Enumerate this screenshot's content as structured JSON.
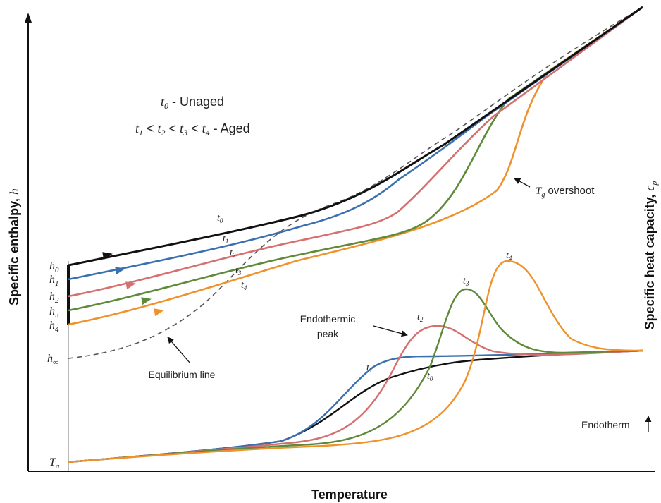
{
  "legend": {
    "line1": {
      "symbol": "t",
      "sub": "0",
      "text": " - Unaged"
    },
    "line2": {
      "parts": [
        {
          "symbol": "t",
          "sub": "1"
        },
        {
          "symbol": "t",
          "sub": "2"
        },
        {
          "symbol": "t",
          "sub": "3"
        },
        {
          "symbol": "t",
          "sub": "4"
        }
      ],
      "separator": " < ",
      "suffix": " - Aged"
    }
  },
  "axes": {
    "x_title": "Temperature",
    "y_left_title": "Specific enthalpy, ",
    "y_left_symbol": "h",
    "y_right_title": "Specific heat capacity, ",
    "y_right_symbol": "c",
    "y_right_sub": "p"
  },
  "left_ticks": [
    {
      "symbol": "h",
      "sub": "0"
    },
    {
      "symbol": "h",
      "sub": "1"
    },
    {
      "symbol": "h",
      "sub": "2"
    },
    {
      "symbol": "h",
      "sub": "3"
    },
    {
      "symbol": "h",
      "sub": "4"
    },
    {
      "symbol": "h",
      "sub": "∞"
    },
    {
      "symbol": "T",
      "sub": "a"
    }
  ],
  "annotations": {
    "tg_overshoot": {
      "symbol": "T",
      "sub": "g",
      "text": " overshoot"
    },
    "endothermic_peak": [
      "Endothermic",
      "peak"
    ],
    "equilibrium_line": "Equilibrium line",
    "endotherm": "Endotherm"
  },
  "enthalpy_curve_labels": [
    {
      "symbol": "t",
      "sub": "0"
    },
    {
      "symbol": "t",
      "sub": "1"
    },
    {
      "symbol": "t",
      "sub": "2"
    },
    {
      "symbol": "t",
      "sub": "3"
    },
    {
      "symbol": "t",
      "sub": "4"
    }
  ],
  "cp_curve_labels": [
    {
      "symbol": "t",
      "sub": "0"
    },
    {
      "symbol": "t",
      "sub": "1"
    },
    {
      "symbol": "t",
      "sub": "2"
    },
    {
      "symbol": "t",
      "sub": "3"
    },
    {
      "symbol": "t",
      "sub": "4"
    }
  ],
  "colors": {
    "t0": "#111111",
    "t1": "#3a6fb0",
    "t2": "#d4706f",
    "t3": "#5e8a3a",
    "t4": "#f0922c",
    "equilibrium": "#555555"
  }
}
